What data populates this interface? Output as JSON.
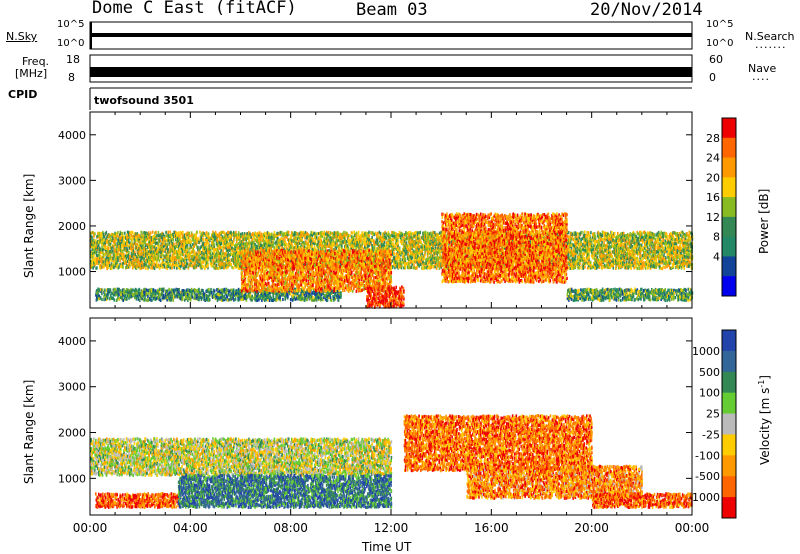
{
  "header": {
    "station": "Dome C East (fitACF)",
    "beam": "Beam 03",
    "date": "20/Nov/2014"
  },
  "top_panels": {
    "nsky_label": "N.Sky",
    "nsky_ticks": [
      "10^5",
      "10^0"
    ],
    "nsearch_label": "N.Search",
    "nsearch_dots": ".......",
    "nsearch_ticks": [
      "10^5",
      "10^0"
    ],
    "freq_label": "Freq.",
    "freq_unit": "[MHz]",
    "freq_ticks": [
      "18",
      "8"
    ],
    "nave_label": "Nave",
    "nave_dots": "....",
    "nave_ticks": [
      "60",
      "0"
    ],
    "cpid_label": "CPID",
    "cpid_value": "twofsound 3501"
  },
  "chart_data": [
    {
      "type": "heatmap",
      "name": "power",
      "ylabel": "Slant Range [km]",
      "xlabel": "",
      "ylim": [
        200,
        4500
      ],
      "xlim_hours": [
        0,
        24
      ],
      "y_ticks": [
        "1000",
        "2000",
        "3000",
        "4000"
      ],
      "colorbar_label": "Power [dB]",
      "colorbar_ticks": [
        "28",
        "24",
        "20",
        "16",
        "12",
        "8",
        "4"
      ],
      "colorbar_colors": [
        "#ee0000",
        "#ff6600",
        "#ff9900",
        "#ffcc00",
        "#88bb22",
        "#338855",
        "#228866",
        "#114499",
        "#0000ee"
      ],
      "bands": [
        {
          "t0": 0.0,
          "t1": 24.0,
          "r0": 1100,
          "r1": 1900,
          "level": 0.55
        },
        {
          "t0": 0.2,
          "t1": 10.0,
          "r0": 400,
          "r1": 650,
          "level": 0.35
        },
        {
          "t0": 6.0,
          "t1": 12.0,
          "r0": 600,
          "r1": 1500,
          "level": 0.75
        },
        {
          "t0": 11.0,
          "t1": 12.5,
          "r0": 250,
          "r1": 700,
          "level": 0.95
        },
        {
          "t0": 14.0,
          "t1": 19.0,
          "r0": 800,
          "r1": 2300,
          "level": 0.8
        },
        {
          "t0": 19.0,
          "t1": 24.0,
          "r0": 400,
          "r1": 650,
          "level": 0.4
        }
      ]
    },
    {
      "type": "heatmap",
      "name": "velocity",
      "ylabel": "Slant Range [km]",
      "xlabel": "Time UT",
      "ylim": [
        200,
        4500
      ],
      "xlim_hours": [
        0,
        24
      ],
      "y_ticks": [
        "1000",
        "2000",
        "3000",
        "4000"
      ],
      "x_ticks": [
        "00:00",
        "04:00",
        "08:00",
        "12:00",
        "16:00",
        "20:00",
        "00:00"
      ],
      "colorbar_label": "Velocity [m s",
      "colorbar_unit_exp": "-1",
      "colorbar_unit_close": "]",
      "colorbar_ticks": [
        "1000",
        "500",
        "100",
        "25",
        "-25",
        "-100",
        "-500",
        "-1000"
      ],
      "colorbar_colors": [
        "#2244aa",
        "#336699",
        "#338855",
        "#66cc33",
        "#bbbbbb",
        "#ffcc00",
        "#ff9900",
        "#ff6600",
        "#ee0000"
      ],
      "bands": [
        {
          "t0": 0.0,
          "t1": 12.0,
          "r0": 1100,
          "r1": 1900,
          "level": 0.5
        },
        {
          "t0": 0.2,
          "t1": 3.5,
          "r0": 400,
          "r1": 700,
          "level": 0.15
        },
        {
          "t0": 3.5,
          "t1": 12.0,
          "r0": 400,
          "r1": 1100,
          "level": 0.8
        },
        {
          "t0": 12.5,
          "t1": 20.0,
          "r0": 1200,
          "r1": 2400,
          "level": 0.2
        },
        {
          "t0": 15.0,
          "t1": 22.0,
          "r0": 600,
          "r1": 1300,
          "level": 0.25
        },
        {
          "t0": 20.0,
          "t1": 24.0,
          "r0": 400,
          "r1": 700,
          "level": 0.15
        }
      ]
    }
  ]
}
